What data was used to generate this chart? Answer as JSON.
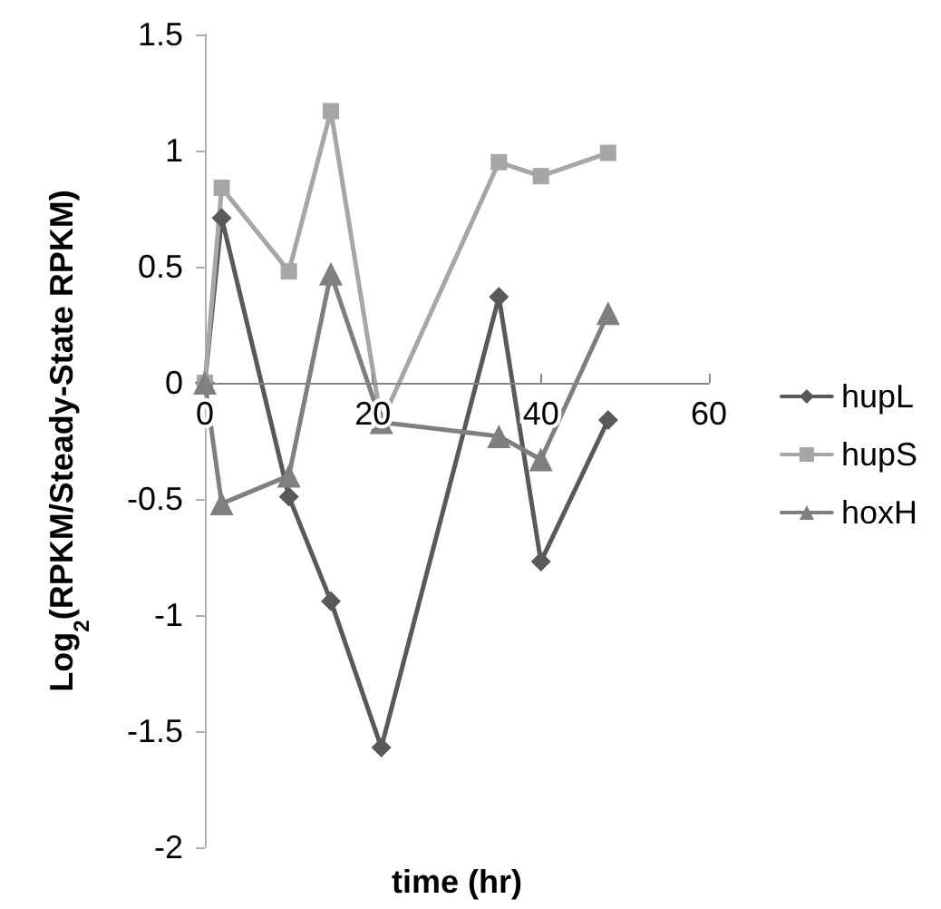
{
  "chart_data": {
    "type": "line",
    "xlabel": "time (hr)",
    "ylabel": "Log$_{2}$(RPKM/Steady-State RPKM)",
    "x": [
      0,
      2,
      10,
      15,
      21,
      35,
      40,
      48
    ],
    "series": [
      {
        "name": "hupL",
        "color": "#595959",
        "marker": "diamond",
        "values": [
          0,
          0.71,
          -0.49,
          -0.94,
          -1.57,
          0.37,
          -0.77,
          -0.16
        ]
      },
      {
        "name": "hupS",
        "color": "#a6a6a6",
        "marker": "square",
        "values": [
          0,
          0.84,
          0.48,
          1.17,
          -0.17,
          0.95,
          0.89,
          0.99
        ]
      },
      {
        "name": "hoxH",
        "color": "#7f7f7f",
        "marker": "triangle",
        "values": [
          0,
          -0.52,
          -0.4,
          0.47,
          -0.17,
          -0.23,
          -0.33,
          0.3
        ]
      }
    ],
    "xlim": [
      0,
      60
    ],
    "xticks": [
      0,
      20,
      40,
      60
    ],
    "ylim": [
      -2,
      1.5
    ],
    "yticks": [
      -2,
      -1.5,
      -1,
      -0.5,
      0,
      0.5,
      1,
      1.5
    ],
    "grid": false,
    "legend": "right"
  }
}
